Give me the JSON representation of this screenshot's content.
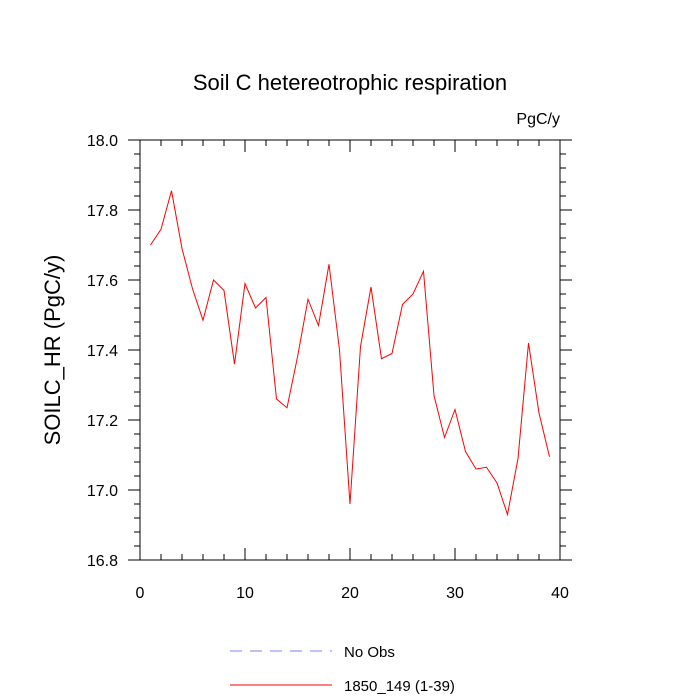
{
  "chart_data": {
    "type": "line",
    "title": "Soil C hetereotrophic respiration",
    "units": "PgC/y",
    "xlabel": "",
    "ylabel": "SOILC_HR  (PgC/y)",
    "xlim": [
      0,
      40
    ],
    "ylim": [
      16.8,
      18.0
    ],
    "xticks": [
      0,
      10,
      20,
      30,
      40
    ],
    "xtick_labels": [
      "0",
      "10",
      "20",
      "30",
      "40"
    ],
    "yticks": [
      16.8,
      17.0,
      17.2,
      17.4,
      17.6,
      17.8,
      18.0
    ],
    "ytick_labels": [
      "16.8",
      "17.0",
      "17.2",
      "17.4",
      "17.6",
      "17.8",
      "18.0"
    ],
    "grid": false,
    "legend_position": "bottom-center",
    "series": [
      {
        "name": "No Obs",
        "color": "#8080ff",
        "style": "dashed",
        "x": [],
        "values": []
      },
      {
        "name": "1850_149 (1-39)",
        "color": "#ff0000",
        "style": "solid",
        "x": [
          1,
          2,
          3,
          4,
          5,
          6,
          7,
          8,
          9,
          10,
          11,
          12,
          13,
          14,
          15,
          16,
          17,
          18,
          19,
          20,
          21,
          22,
          23,
          24,
          25,
          26,
          27,
          28,
          29,
          30,
          31,
          32,
          33,
          34,
          35,
          36,
          37,
          38,
          39
        ],
        "values": [
          17.7,
          17.745,
          17.855,
          17.69,
          17.575,
          17.485,
          17.6,
          17.57,
          17.36,
          17.59,
          17.52,
          17.55,
          17.26,
          17.235,
          17.38,
          17.545,
          17.47,
          17.645,
          17.4,
          16.96,
          17.41,
          17.58,
          17.375,
          17.39,
          17.53,
          17.56,
          17.625,
          17.27,
          17.15,
          17.23,
          17.11,
          17.06,
          17.065,
          17.02,
          16.93,
          17.09,
          17.42,
          17.22,
          17.095
        ]
      }
    ]
  }
}
